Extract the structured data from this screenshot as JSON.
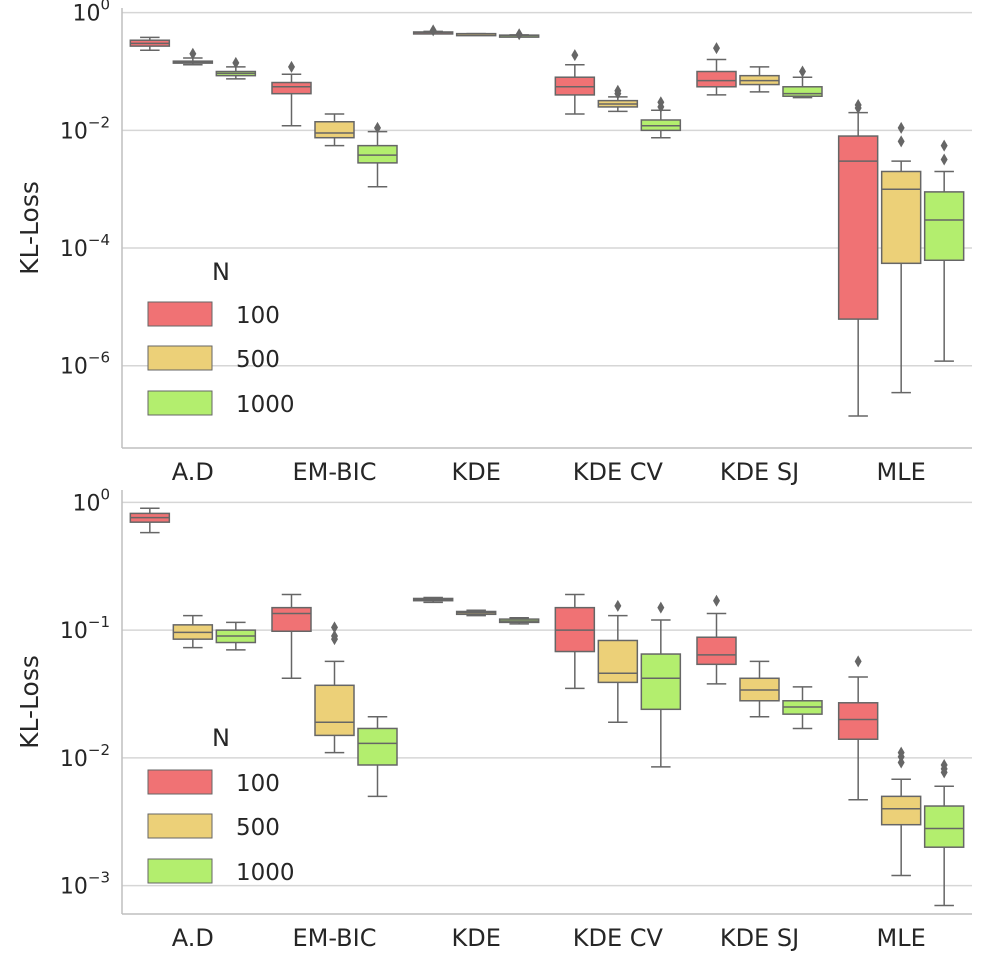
{
  "colors": {
    "n100": "#f07274",
    "n500": "#ecd078",
    "n1000": "#b3ee6e",
    "whisker": "#666666",
    "grid": "#d6d6d6",
    "axis": "#bfbfbf"
  },
  "chart_data": [
    {
      "type": "box",
      "scale": "log",
      "ylim": [
        4e-08,
        1.2
      ],
      "grid": true,
      "legend_position": "center-left",
      "title": "",
      "xlabel": "",
      "ylabel": "KL-Loss",
      "categories": [
        "A.D",
        "EM-BIC",
        "KDE",
        "KDE CV",
        "KDE SJ",
        "MLE"
      ],
      "yticks": [
        {
          "value": 1,
          "label": "10",
          "exp": "0"
        },
        {
          "value": 0.01,
          "label": "10",
          "exp": "−2"
        },
        {
          "value": 0.0001,
          "label": "10",
          "exp": "−4"
        },
        {
          "value": 1e-06,
          "label": "10",
          "exp": "−6"
        }
      ],
      "legend": {
        "title": "N",
        "entries": [
          "100",
          "500",
          "1000"
        ]
      },
      "series": [
        {
          "key": "n100",
          "boxes": [
            {
              "wlo": 0.23,
              "q1": 0.27,
              "median": 0.3,
              "q3": 0.34,
              "whi": 0.38,
              "fliers": []
            },
            {
              "wlo": 0.012,
              "q1": 0.042,
              "median": 0.055,
              "q3": 0.065,
              "whi": 0.09,
              "fliers": [
                0.12
              ]
            },
            {
              "wlo": 0.44,
              "q1": 0.45,
              "median": 0.46,
              "q3": 0.47,
              "whi": 0.48,
              "fliers": [
                0.5
              ]
            },
            {
              "wlo": 0.019,
              "q1": 0.04,
              "median": 0.055,
              "q3": 0.08,
              "whi": 0.13,
              "fliers": [
                0.19
              ]
            },
            {
              "wlo": 0.04,
              "q1": 0.055,
              "median": 0.07,
              "q3": 0.1,
              "whi": 0.16,
              "fliers": [
                0.25
              ]
            },
            {
              "wlo": 1.4e-07,
              "q1": 6.2e-06,
              "median": 0.003,
              "q3": 0.008,
              "whi": 0.02,
              "fliers": [
                0.024,
                0.027
              ]
            }
          ]
        },
        {
          "key": "n500",
          "boxes": [
            {
              "wlo": 0.13,
              "q1": 0.14,
              "median": 0.145,
              "q3": 0.15,
              "whi": 0.17,
              "fliers": [
                0.2
              ]
            },
            {
              "wlo": 0.0055,
              "q1": 0.0075,
              "median": 0.009,
              "q3": 0.014,
              "whi": 0.019,
              "fliers": []
            },
            {
              "wlo": 0.43,
              "q1": 0.43,
              "median": 0.435,
              "q3": 0.44,
              "whi": 0.44,
              "fliers": []
            },
            {
              "wlo": 0.021,
              "q1": 0.025,
              "median": 0.028,
              "q3": 0.032,
              "whi": 0.037,
              "fliers": [
                0.042,
                0.047
              ]
            },
            {
              "wlo": 0.045,
              "q1": 0.06,
              "median": 0.07,
              "q3": 0.085,
              "whi": 0.12,
              "fliers": []
            },
            {
              "wlo": 3.5e-07,
              "q1": 5.5e-05,
              "median": 0.001,
              "q3": 0.002,
              "whi": 0.003,
              "fliers": [
                0.0065,
                0.011
              ]
            }
          ]
        },
        {
          "key": "n1000",
          "boxes": [
            {
              "wlo": 0.075,
              "q1": 0.085,
              "median": 0.093,
              "q3": 0.1,
              "whi": 0.12,
              "fliers": [
                0.14
              ]
            },
            {
              "wlo": 0.0011,
              "q1": 0.0028,
              "median": 0.0038,
              "q3": 0.0055,
              "whi": 0.0095,
              "fliers": [
                0.011
              ]
            },
            {
              "wlo": 0.4,
              "q1": 0.405,
              "median": 0.41,
              "q3": 0.415,
              "whi": 0.42,
              "fliers": [
                0.43
              ]
            },
            {
              "wlo": 0.0075,
              "q1": 0.01,
              "median": 0.012,
              "q3": 0.015,
              "whi": 0.022,
              "fliers": [
                0.025,
                0.03
              ]
            },
            {
              "wlo": 0.036,
              "q1": 0.038,
              "median": 0.042,
              "q3": 0.055,
              "whi": 0.08,
              "fliers": [
                0.1
              ]
            },
            {
              "wlo": 1.2e-06,
              "q1": 6.2e-05,
              "median": 0.0003,
              "q3": 0.0009,
              "whi": 0.002,
              "fliers": [
                0.0032,
                0.0055
              ]
            }
          ]
        }
      ]
    },
    {
      "type": "box",
      "scale": "log",
      "ylim": [
        0.0006,
        1.25
      ],
      "grid": true,
      "legend_position": "center-left",
      "title": "",
      "xlabel": "",
      "ylabel": "KL-Loss",
      "categories": [
        "A.D",
        "EM-BIC",
        "KDE",
        "KDE CV",
        "KDE SJ",
        "MLE"
      ],
      "yticks": [
        {
          "value": 1,
          "label": "10",
          "exp": "0"
        },
        {
          "value": 0.1,
          "label": "10",
          "exp": "−1"
        },
        {
          "value": 0.01,
          "label": "10",
          "exp": "−2"
        },
        {
          "value": 0.001,
          "label": "10",
          "exp": "−3"
        }
      ],
      "legend": {
        "title": "N",
        "entries": [
          "100",
          "500",
          "1000"
        ]
      },
      "series": [
        {
          "key": "n100",
          "boxes": [
            {
              "wlo": 0.58,
              "q1": 0.7,
              "median": 0.76,
              "q3": 0.82,
              "whi": 0.9,
              "fliers": []
            },
            {
              "wlo": 0.042,
              "q1": 0.098,
              "median": 0.135,
              "q3": 0.15,
              "whi": 0.19,
              "fliers": []
            },
            {
              "wlo": 0.165,
              "q1": 0.17,
              "median": 0.173,
              "q3": 0.177,
              "whi": 0.18,
              "fliers": []
            },
            {
              "wlo": 0.035,
              "q1": 0.068,
              "median": 0.1,
              "q3": 0.15,
              "whi": 0.19,
              "fliers": []
            },
            {
              "wlo": 0.038,
              "q1": 0.054,
              "median": 0.064,
              "q3": 0.088,
              "whi": 0.135,
              "fliers": [
                0.17
              ]
            },
            {
              "wlo": 0.0047,
              "q1": 0.014,
              "median": 0.02,
              "q3": 0.027,
              "whi": 0.043,
              "fliers": [
                0.057
              ]
            }
          ]
        },
        {
          "key": "n500",
          "boxes": [
            {
              "wlo": 0.073,
              "q1": 0.085,
              "median": 0.096,
              "q3": 0.11,
              "whi": 0.13,
              "fliers": []
            },
            {
              "wlo": 0.011,
              "q1": 0.015,
              "median": 0.019,
              "q3": 0.037,
              "whi": 0.057,
              "fliers": [
                0.085,
                0.09,
                0.105
              ]
            },
            {
              "wlo": 0.13,
              "q1": 0.133,
              "median": 0.137,
              "q3": 0.14,
              "whi": 0.143,
              "fliers": []
            },
            {
              "wlo": 0.019,
              "q1": 0.039,
              "median": 0.046,
              "q3": 0.083,
              "whi": 0.13,
              "fliers": [
                0.155
              ]
            },
            {
              "wlo": 0.021,
              "q1": 0.028,
              "median": 0.034,
              "q3": 0.042,
              "whi": 0.057,
              "fliers": []
            },
            {
              "wlo": 0.0012,
              "q1": 0.003,
              "median": 0.004,
              "q3": 0.005,
              "whi": 0.0068,
              "fliers": [
                0.0092,
                0.0102,
                0.011
              ]
            }
          ]
        },
        {
          "key": "n1000",
          "boxes": [
            {
              "wlo": 0.07,
              "q1": 0.08,
              "median": 0.09,
              "q3": 0.1,
              "whi": 0.115,
              "fliers": []
            },
            {
              "wlo": 0.005,
              "q1": 0.0088,
              "median": 0.013,
              "q3": 0.017,
              "whi": 0.021,
              "fliers": []
            },
            {
              "wlo": 0.112,
              "q1": 0.115,
              "median": 0.118,
              "q3": 0.122,
              "whi": 0.125,
              "fliers": []
            },
            {
              "wlo": 0.0085,
              "q1": 0.024,
              "median": 0.042,
              "q3": 0.065,
              "whi": 0.12,
              "fliers": [
                0.15
              ]
            },
            {
              "wlo": 0.017,
              "q1": 0.022,
              "median": 0.025,
              "q3": 0.028,
              "whi": 0.036,
              "fliers": []
            },
            {
              "wlo": 0.0007,
              "q1": 0.002,
              "median": 0.0028,
              "q3": 0.0042,
              "whi": 0.006,
              "fliers": [
                0.0077,
                0.0082,
                0.0088
              ]
            }
          ]
        }
      ]
    }
  ]
}
